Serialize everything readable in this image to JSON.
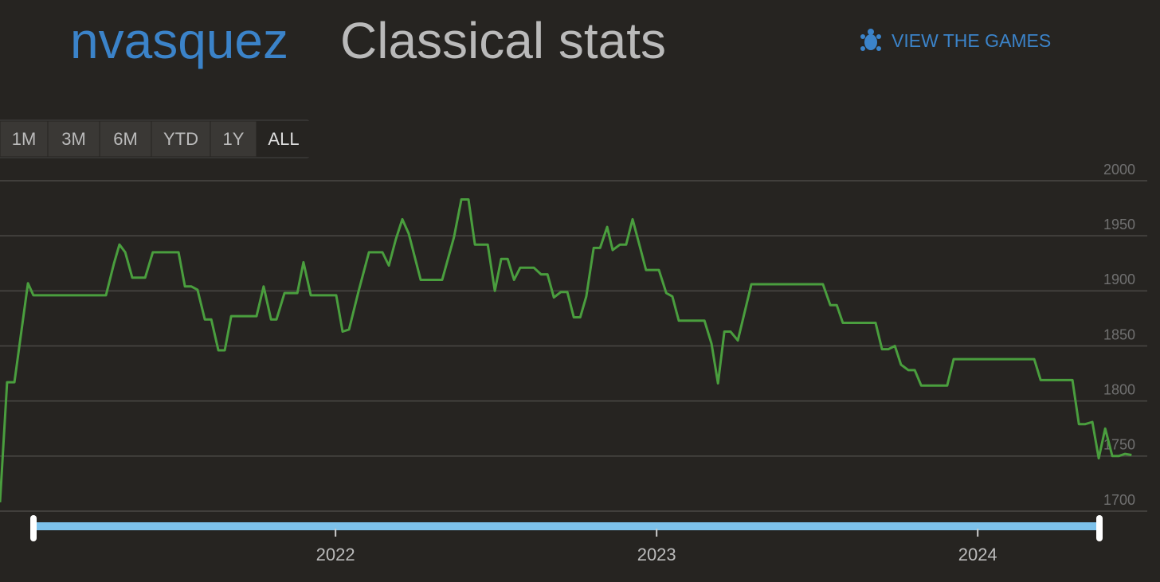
{
  "header": {
    "username": "nvasquez",
    "title": "Classical stats",
    "link": "VIEW THE GAMES"
  },
  "range_buttons": [
    "1M",
    "3M",
    "6M",
    "YTD",
    "1Y",
    "ALL"
  ],
  "chart_data": {
    "type": "line",
    "color": "#4a9e3e",
    "grid": true,
    "x": [
      2020.955,
      2020.977,
      2021.0,
      2021.042,
      2021.059,
      2021.285,
      2021.31,
      2021.327,
      2021.345,
      2021.367,
      2021.407,
      2021.431,
      2021.511,
      2021.531,
      2021.551,
      2021.57,
      2021.593,
      2021.613,
      2021.635,
      2021.655,
      2021.675,
      2021.754,
      2021.776,
      2021.799,
      2021.816,
      2021.841,
      2021.881,
      2021.9,
      2021.923,
      2022.002,
      2022.022,
      2022.042,
      2022.072,
      2022.104,
      2022.146,
      2022.166,
      2022.188,
      2022.208,
      2022.228,
      2022.265,
      2022.332,
      2022.369,
      2022.392,
      2022.414,
      2022.434,
      2022.474,
      2022.496,
      2022.516,
      2022.536,
      2022.556,
      2022.575,
      2022.618,
      2022.64,
      2022.66,
      2022.68,
      2022.702,
      2022.722,
      2022.742,
      2022.762,
      2022.781,
      2022.804,
      2022.824,
      2022.846,
      2022.863,
      2022.886,
      2022.905,
      2022.925,
      2022.948,
      2022.967,
      2023.007,
      2023.03,
      2023.049,
      2023.069,
      2023.149,
      2023.171,
      2023.191,
      2023.211,
      2023.23,
      2023.253,
      2023.295,
      2023.518,
      2023.541,
      2023.561,
      2023.58,
      2023.682,
      2023.702,
      2023.722,
      2023.742,
      2023.761,
      2023.784,
      2023.804,
      2023.824,
      2023.905,
      2023.925,
      2024.176,
      2024.196,
      2024.295,
      2024.315,
      2024.335,
      2024.357,
      2024.377,
      2024.397,
      2024.419,
      2024.439,
      2024.459,
      2024.479
    ],
    "values": [
      1708,
      1817,
      1817,
      1907,
      1896,
      1896,
      1925,
      1942,
      1935,
      1912,
      1912,
      1935,
      1935,
      1904,
      1904,
      1901,
      1874,
      1874,
      1846,
      1846,
      1877,
      1877,
      1904,
      1874,
      1874,
      1898,
      1898,
      1926,
      1896,
      1896,
      1863,
      1865,
      1900,
      1935,
      1935,
      1923,
      1947,
      1965,
      1952,
      1910,
      1910,
      1949,
      1983,
      1983,
      1942,
      1942,
      1900,
      1929,
      1929,
      1910,
      1921,
      1921,
      1915,
      1915,
      1894,
      1899,
      1899,
      1876,
      1876,
      1895,
      1939,
      1939,
      1958,
      1937,
      1942,
      1942,
      1965,
      1940,
      1919,
      1919,
      1898,
      1895,
      1873,
      1873,
      1852,
      1816,
      1863,
      1863,
      1855,
      1906,
      1906,
      1887,
      1887,
      1871,
      1871,
      1847,
      1847,
      1850,
      1833,
      1828,
      1828,
      1814,
      1814,
      1838,
      1838,
      1819,
      1819,
      1779,
      1779,
      1781,
      1748,
      1775,
      1750,
      1750,
      1752,
      1751
    ],
    "xlim": [
      2020.955,
      2024.528
    ],
    "xticks": [
      2022,
      2023,
      2024
    ],
    "ylim": [
      1700,
      2000
    ],
    "yticks": [
      1700,
      1750,
      1800,
      1850,
      1900,
      1950,
      2000
    ]
  }
}
